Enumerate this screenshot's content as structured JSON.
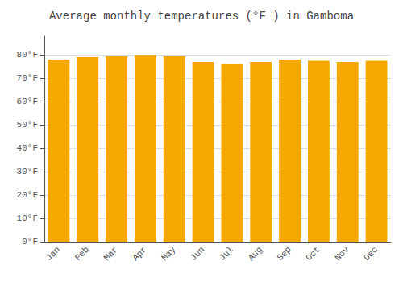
{
  "chart_data": {
    "type": "bar",
    "title": "Average monthly temperatures (°F ) in Gamboma",
    "categories": [
      "Jan",
      "Feb",
      "Mar",
      "Apr",
      "May",
      "Jun",
      "Jul",
      "Aug",
      "Sep",
      "Oct",
      "Nov",
      "Dec"
    ],
    "values": [
      78.0,
      79.0,
      79.5,
      80.0,
      79.5,
      77.0,
      76.0,
      77.0,
      78.0,
      77.5,
      77.0,
      77.5
    ],
    "color": "#F5A800",
    "ylim": [
      0,
      88
    ],
    "yticks": [
      {
        "value": 0,
        "label": "0°F"
      },
      {
        "value": 10,
        "label": "10°F"
      },
      {
        "value": 20,
        "label": "20°F"
      },
      {
        "value": 30,
        "label": "30°F"
      },
      {
        "value": 40,
        "label": "40°F"
      },
      {
        "value": 50,
        "label": "50°F"
      },
      {
        "value": 60,
        "label": "60°F"
      },
      {
        "value": 70,
        "label": "70°F"
      },
      {
        "value": 80,
        "label": "80°F"
      }
    ],
    "grid": true
  }
}
